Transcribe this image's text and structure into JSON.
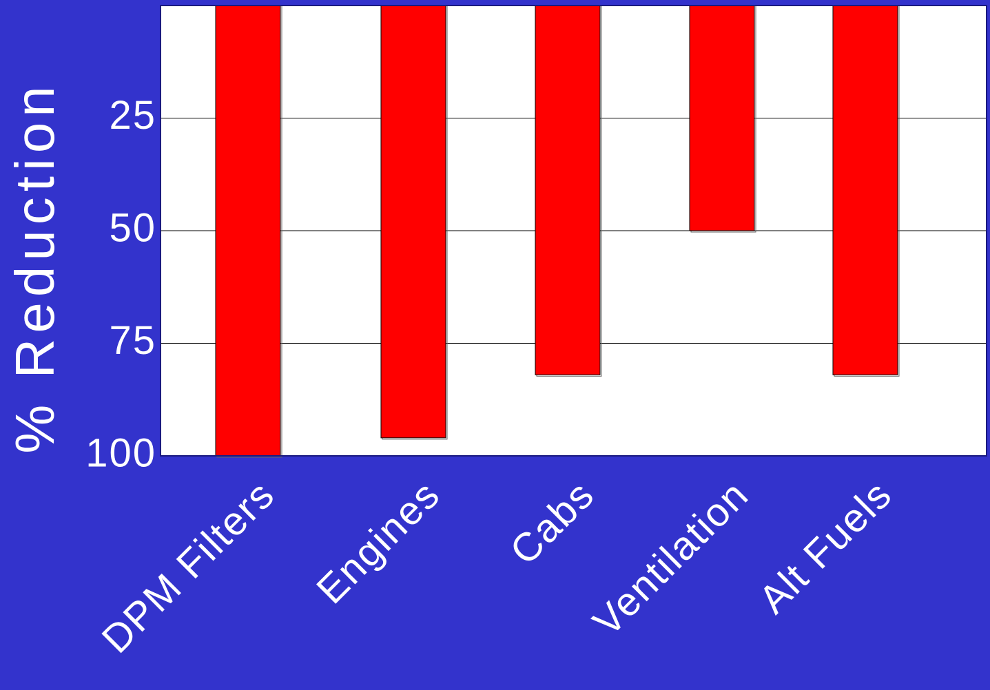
{
  "colors": {
    "background": "#3333cc",
    "plot_background": "#ffffff",
    "bar": "#ff0000",
    "grid": "#000000",
    "text": "#ffffff"
  },
  "chart_data": {
    "type": "bar",
    "orientation": "vertical",
    "y_inverted": true,
    "categories": [
      "DPM Filters",
      "Engines",
      "Cabs",
      "Ventilation",
      "Alt Fuels"
    ],
    "values": [
      100,
      96,
      82,
      50,
      82
    ],
    "title": "",
    "xlabel": "",
    "ylabel": "% Reduction",
    "ylim": [
      0,
      100
    ],
    "yticks": [
      25,
      50,
      75,
      100
    ],
    "grid": true,
    "legend": "none"
  }
}
